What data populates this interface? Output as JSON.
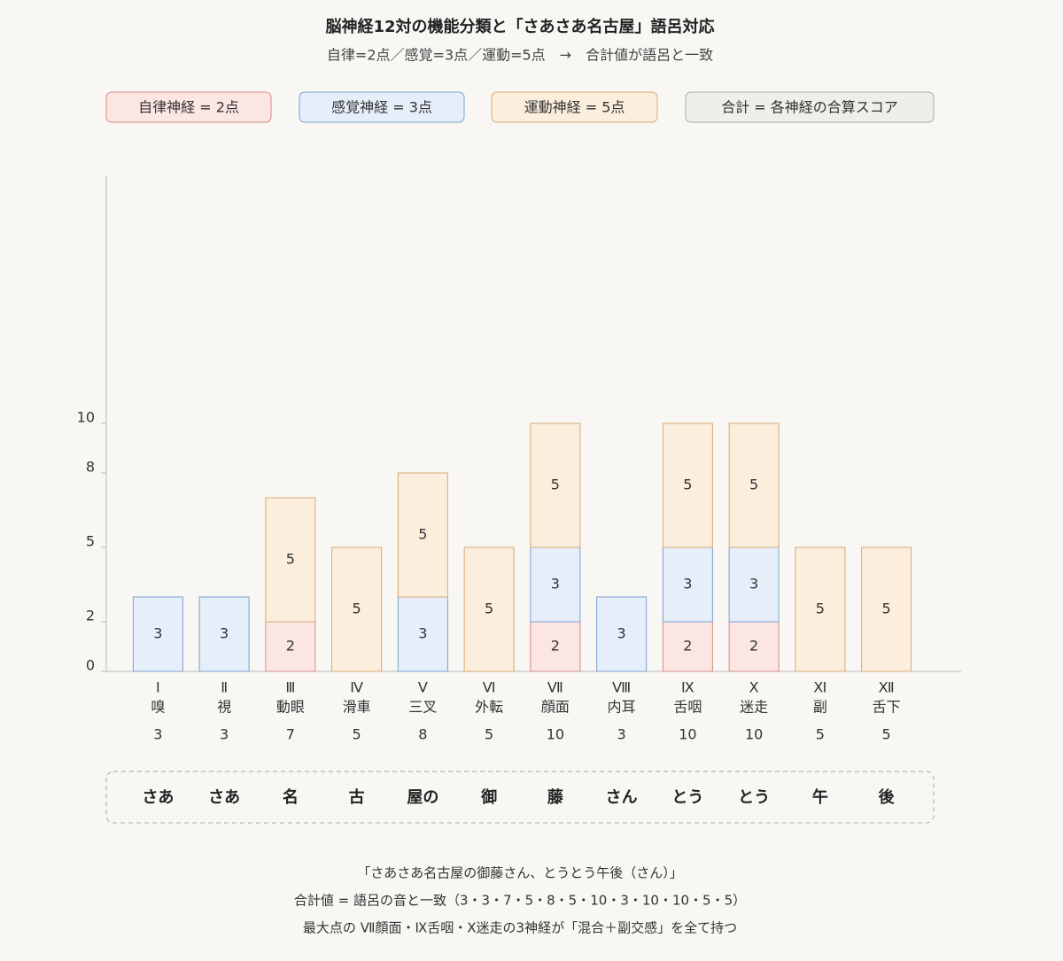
{
  "chart_data": {
    "type": "stacked_bar",
    "title": "脳神経12対の機能分類と「さあさあ名古屋」語呂対応",
    "subtitle": "自律=2点／感覚=3点／運動=5点　→　合計値が語呂と一致",
    "categories": [
      "Ⅰ",
      "Ⅱ",
      "Ⅲ",
      "Ⅳ",
      "Ⅴ",
      "Ⅵ",
      "Ⅶ",
      "Ⅷ",
      "Ⅸ",
      "Ⅹ",
      "Ⅺ",
      "Ⅻ"
    ],
    "category_names": [
      "嗅",
      "視",
      "動眼",
      "滑車",
      "三叉",
      "外転",
      "顔面",
      "内耳",
      "舌咽",
      "迷走",
      "副",
      "舌下"
    ],
    "totals": [
      3,
      3,
      7,
      5,
      8,
      5,
      10,
      3,
      10,
      10,
      5,
      5
    ],
    "mnemonic": [
      "さあ",
      "さあ",
      "名",
      "古",
      "屋の",
      "御",
      "藤",
      "さん",
      "とう",
      "とう",
      "午",
      "後"
    ],
    "series": [
      {
        "name": "自律神経 = 2点",
        "color": "#fbe6e4",
        "stroke": "#d98a84",
        "values": [
          null,
          null,
          2,
          null,
          null,
          null,
          2,
          null,
          2,
          2,
          null,
          null
        ]
      },
      {
        "name": "感覚神経 = 3点",
        "color": "#e5eef9",
        "stroke": "#7aa3cf",
        "values": [
          3,
          3,
          null,
          null,
          3,
          null,
          3,
          3,
          3,
          3,
          null,
          null
        ]
      },
      {
        "name": "運動神経 = 5点",
        "color": "#fbeedd",
        "stroke": "#d9aa73",
        "values": [
          null,
          null,
          5,
          5,
          5,
          5,
          5,
          null,
          5,
          5,
          5,
          5
        ]
      }
    ],
    "total_legend": "合計 = 各神経の合算スコア",
    "ylim": [
      0,
      20
    ],
    "yticks": [
      0,
      2,
      5,
      8,
      10
    ],
    "notes": [
      "「さあさあ名古屋の御藤さん、とうとう午後（さん）」",
      "合計値 = 語呂の音と一致（3・3・7・5・8・5・10・3・10・10・5・5）",
      "最大点の Ⅶ顔面・Ⅸ舌咽・Ⅹ迷走の3神経が「混合＋副交感」を全て持つ"
    ]
  }
}
